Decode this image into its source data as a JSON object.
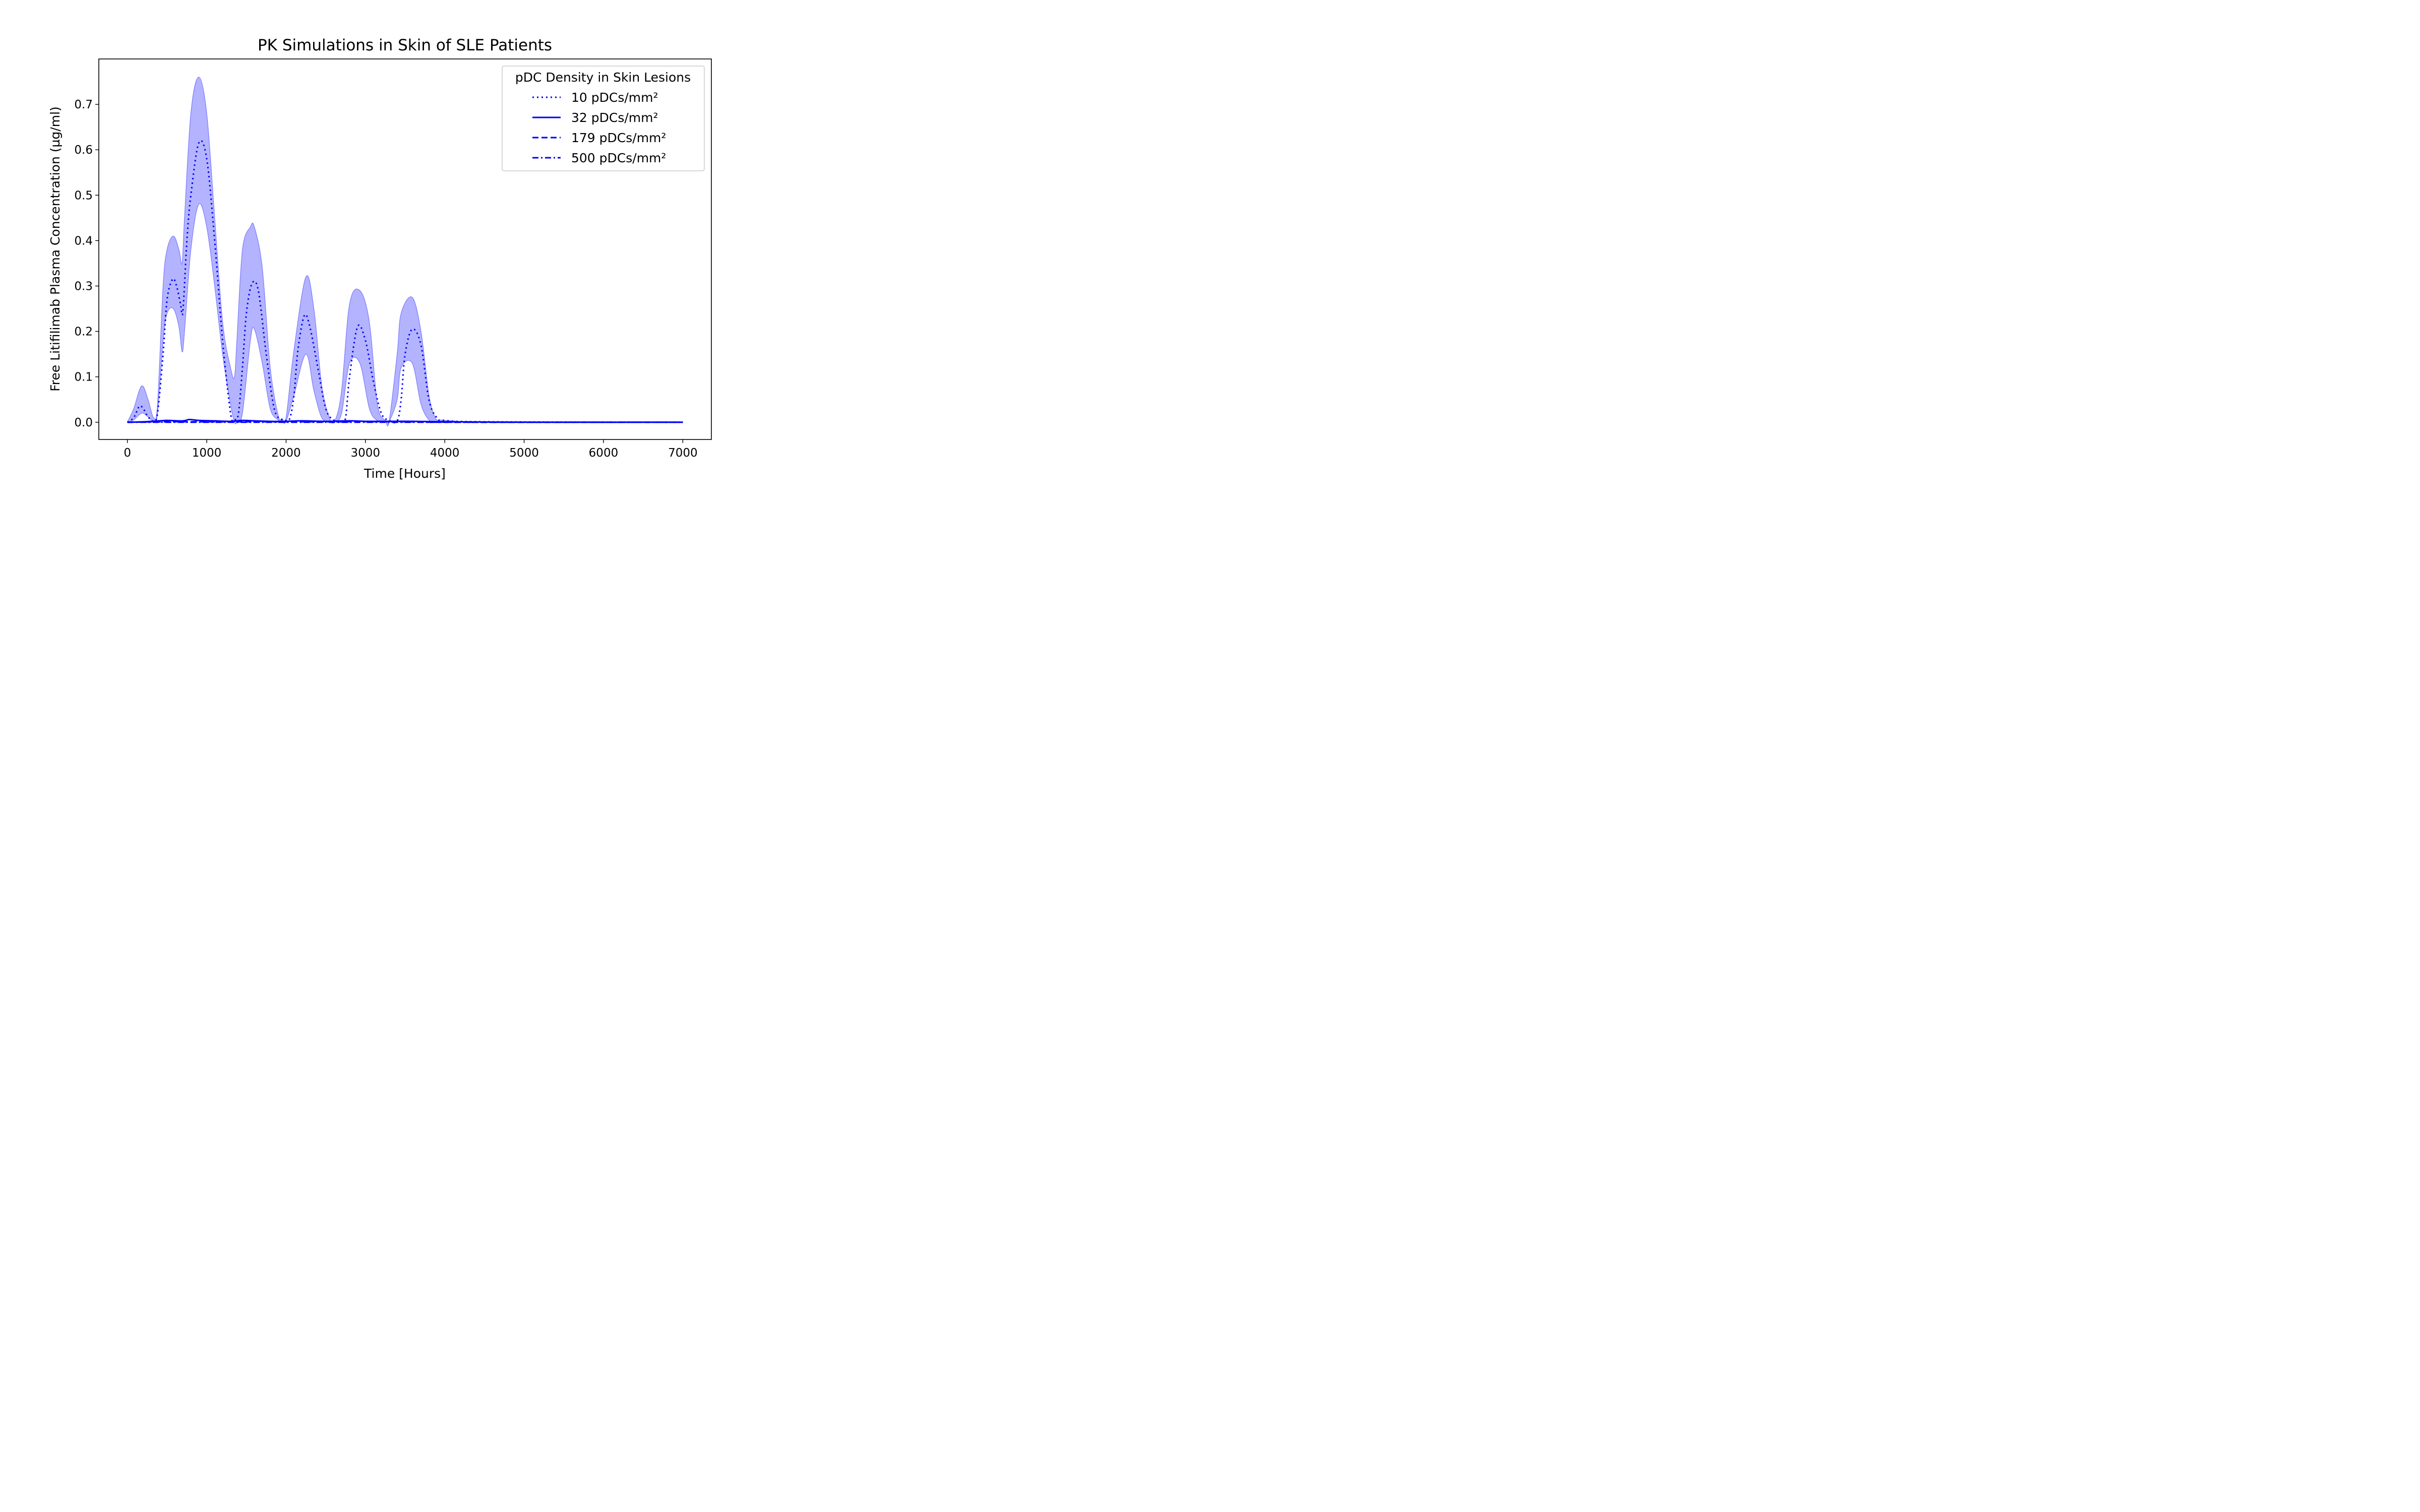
{
  "chart_data": {
    "type": "line",
    "title": "PK Simulations in Skin of SLE Patients",
    "xlabel": "Time [Hours]",
    "ylabel": "Free Litifilimab Plasma Concentration (µg/ml)",
    "xlim": [
      -360,
      7360
    ],
    "ylim": [
      -0.038,
      0.8
    ],
    "xticks": [
      0,
      1000,
      2000,
      3000,
      4000,
      5000,
      6000,
      7000
    ],
    "xtick_labels": [
      "0",
      "1000",
      "2000",
      "3000",
      "4000",
      "5000",
      "6000",
      "7000"
    ],
    "yticks": [
      0.0,
      0.1,
      0.2,
      0.3,
      0.4,
      0.5,
      0.6,
      0.7
    ],
    "ytick_labels": [
      "0.0",
      "0.1",
      "0.2",
      "0.3",
      "0.4",
      "0.5",
      "0.6",
      "0.7"
    ],
    "grid": false,
    "legend": {
      "title": "pDC Density in Skin Lesions",
      "placement": "top-right"
    },
    "colors": {
      "line": "#0000ff",
      "band_fill": "#b3b3ff",
      "band_edge": "#8080ff",
      "frame": "#000000"
    },
    "band": {
      "name": "",
      "x": [
        0,
        80,
        180,
        260,
        330,
        380,
        450,
        500,
        580,
        650,
        690,
        720,
        800,
        900,
        1000,
        1100,
        1200,
        1300,
        1350,
        1380,
        1450,
        1550,
        1600,
        1700,
        1800,
        1900,
        1950,
        2000,
        2100,
        2250,
        2350,
        2450,
        2550,
        2620,
        2700,
        2800,
        2930,
        3050,
        3150,
        3250,
        3300,
        3400,
        3450,
        3590,
        3700,
        3800,
        3880,
        3950,
        4100,
        4500,
        7000
      ],
      "lower": [
        0,
        0.005,
        0.02,
        0.012,
        0.003,
        0.02,
        0.18,
        0.24,
        0.25,
        0.21,
        0.155,
        0.2,
        0.38,
        0.48,
        0.43,
        0.3,
        0.15,
        0.04,
        0.0,
        0.0,
        0.02,
        0.18,
        0.205,
        0.13,
        0.03,
        0.005,
        0.002,
        0.002,
        0.06,
        0.15,
        0.07,
        0.01,
        0.002,
        0.002,
        0.02,
        0.13,
        0.13,
        0.03,
        0.004,
        0.002,
        0.002,
        0.05,
        0.12,
        0.13,
        0.04,
        0.005,
        0.002,
        0.002,
        0.0,
        0.0,
        0.0
      ],
      "upper": [
        0,
        0.03,
        0.08,
        0.05,
        0.01,
        0.04,
        0.3,
        0.38,
        0.41,
        0.38,
        0.35,
        0.45,
        0.68,
        0.76,
        0.68,
        0.45,
        0.22,
        0.12,
        0.1,
        0.18,
        0.38,
        0.43,
        0.43,
        0.34,
        0.12,
        0.015,
        0.008,
        0.01,
        0.16,
        0.32,
        0.25,
        0.08,
        0.008,
        0.005,
        0.07,
        0.26,
        0.29,
        0.22,
        0.04,
        0.004,
        0.004,
        0.15,
        0.24,
        0.275,
        0.2,
        0.06,
        0.01,
        0.005,
        0.003,
        0.001,
        0.0
      ]
    },
    "series": [
      {
        "name": "10 pDCs/mm²",
        "style": "dotted",
        "x": [
          0,
          80,
          150,
          200,
          260,
          330,
          380,
          450,
          500,
          570,
          620,
          670,
          700,
          750,
          800,
          900,
          1000,
          1100,
          1200,
          1300,
          1350,
          1400,
          1450,
          1500,
          1570,
          1650,
          1750,
          1850,
          1950,
          2000,
          2050,
          2100,
          2150,
          2230,
          2300,
          2400,
          2500,
          2600,
          2700,
          2750,
          2800,
          2900,
          3000,
          3100,
          3200,
          3300,
          3400,
          3450,
          3500,
          3590,
          3700,
          3800,
          3900,
          4000,
          4500,
          7000
        ],
        "y": [
          0,
          0.01,
          0.035,
          0.03,
          0.012,
          0.003,
          0.02,
          0.15,
          0.27,
          0.315,
          0.3,
          0.26,
          0.245,
          0.4,
          0.5,
          0.615,
          0.58,
          0.4,
          0.18,
          0.02,
          0.006,
          0.02,
          0.12,
          0.24,
          0.305,
          0.29,
          0.15,
          0.03,
          0.005,
          0.004,
          0.01,
          0.06,
          0.16,
          0.235,
          0.21,
          0.12,
          0.03,
          0.005,
          0.003,
          0.01,
          0.1,
          0.21,
          0.18,
          0.09,
          0.02,
          0.004,
          0.003,
          0.05,
          0.15,
          0.205,
          0.17,
          0.05,
          0.01,
          0.004,
          0.001,
          0.0
        ]
      },
      {
        "name": "32 pDCs/mm²",
        "style": "solid",
        "x": [
          0,
          200,
          400,
          500,
          700,
          780,
          900,
          1100,
          1300,
          1450,
          1600,
          1800,
          2000,
          2200,
          2500,
          2800,
          3000,
          3300,
          3600,
          4000,
          5000,
          7000
        ],
        "y": [
          0,
          0.001,
          0.003,
          0.004,
          0.003,
          0.006,
          0.004,
          0.003,
          0.002,
          0.004,
          0.003,
          0.002,
          0.002,
          0.003,
          0.002,
          0.003,
          0.002,
          0.002,
          0.002,
          0.001,
          0.0,
          0.0
        ]
      },
      {
        "name": "179 pDCs/mm²",
        "style": "dashed",
        "x": [
          0,
          500,
          900,
          1500,
          2500,
          3500,
          4000,
          7000
        ],
        "y": [
          0,
          0.001,
          0.001,
          0.001,
          0.001,
          0.001,
          0.0,
          0.0
        ]
      },
      {
        "name": "500 pDCs/mm²",
        "style": "dashdot",
        "x": [
          0,
          500,
          900,
          1500,
          2500,
          3500,
          4000,
          7000
        ],
        "y": [
          0,
          0.0,
          0.0,
          0.0,
          0.0,
          0.0,
          0.0,
          0.0
        ]
      }
    ]
  }
}
